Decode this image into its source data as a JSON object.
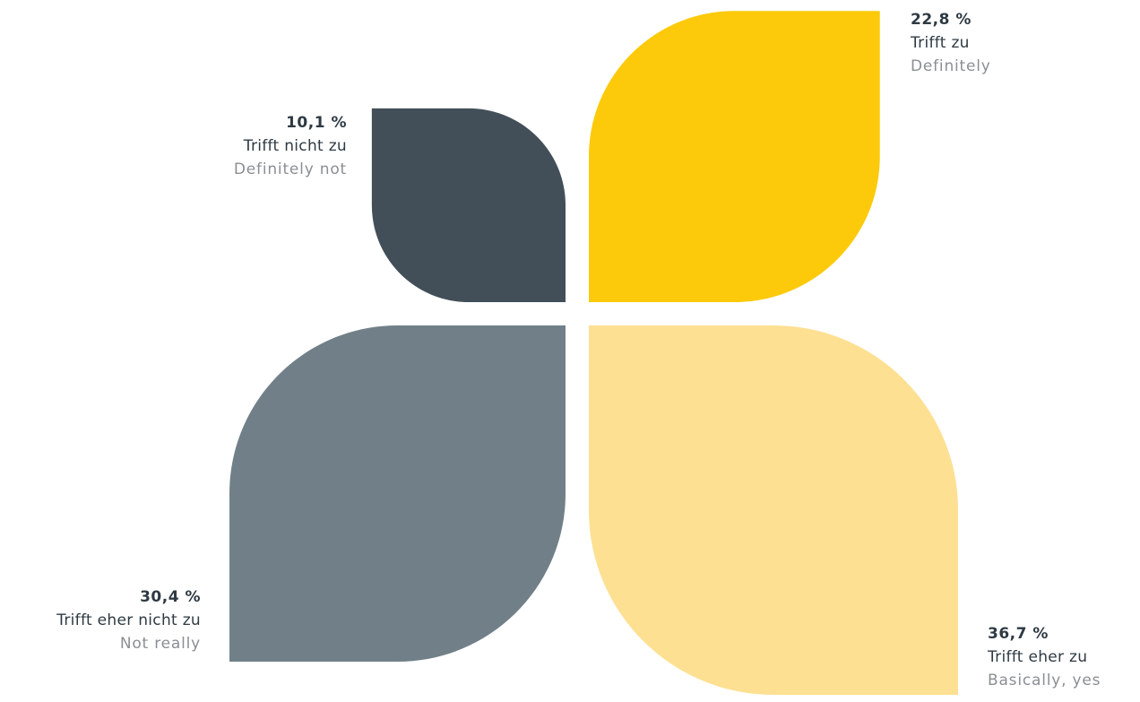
{
  "chart_data": {
    "type": "pie",
    "title": "",
    "unit": "%",
    "segments": [
      {
        "id": "top-left",
        "value": 10.1,
        "value_label": "10,1 %",
        "label_de": "Trifft nicht zu",
        "label_en": "Definitely not",
        "color": "#424f58"
      },
      {
        "id": "top-right",
        "value": 22.8,
        "value_label": "22,8 %",
        "label_de": "Trifft zu",
        "label_en": "Definitely",
        "color": "#fcca0a"
      },
      {
        "id": "bottom-left",
        "value": 30.4,
        "value_label": "30,4 %",
        "label_de": "Trifft eher nicht zu",
        "label_en": "Not really",
        "color": "#718088"
      },
      {
        "id": "bottom-right",
        "value": 36.7,
        "value_label": "36,7 %",
        "label_de": "Trifft eher zu",
        "label_en": "Basically, yes",
        "color": "#fde092"
      }
    ]
  }
}
